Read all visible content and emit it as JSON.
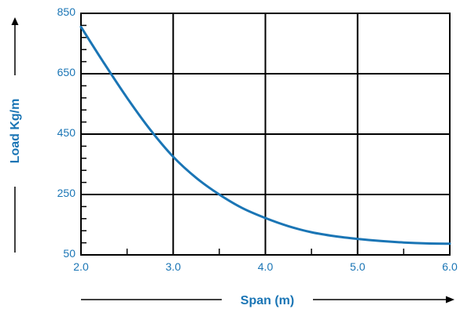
{
  "colors": {
    "accent": "#1a75b5",
    "frame": "#000000",
    "grid": "#000000"
  },
  "chart_data": {
    "type": "line",
    "title": "",
    "xlabel": "Span (m)",
    "ylabel": "Load Kg/m",
    "xlim": [
      2.0,
      6.0
    ],
    "ylim": [
      50,
      850
    ],
    "x_tick_labels": [
      "2.0",
      "3.0",
      "4.0",
      "5.0",
      "6.0"
    ],
    "y_tick_labels": [
      "850",
      "650",
      "450",
      "250",
      "50"
    ],
    "grid": true,
    "series": [
      {
        "x": [
          2.0,
          2.25,
          2.5,
          2.75,
          3.0,
          3.25,
          3.5,
          3.75,
          4.0,
          4.25,
          4.5,
          4.75,
          5.0,
          5.25,
          5.5,
          5.75,
          6.0
        ],
        "y": [
          805,
          685,
          570,
          465,
          375,
          305,
          250,
          205,
          172,
          145,
          125,
          112,
          103,
          96,
          91,
          88,
          87
        ]
      }
    ]
  }
}
